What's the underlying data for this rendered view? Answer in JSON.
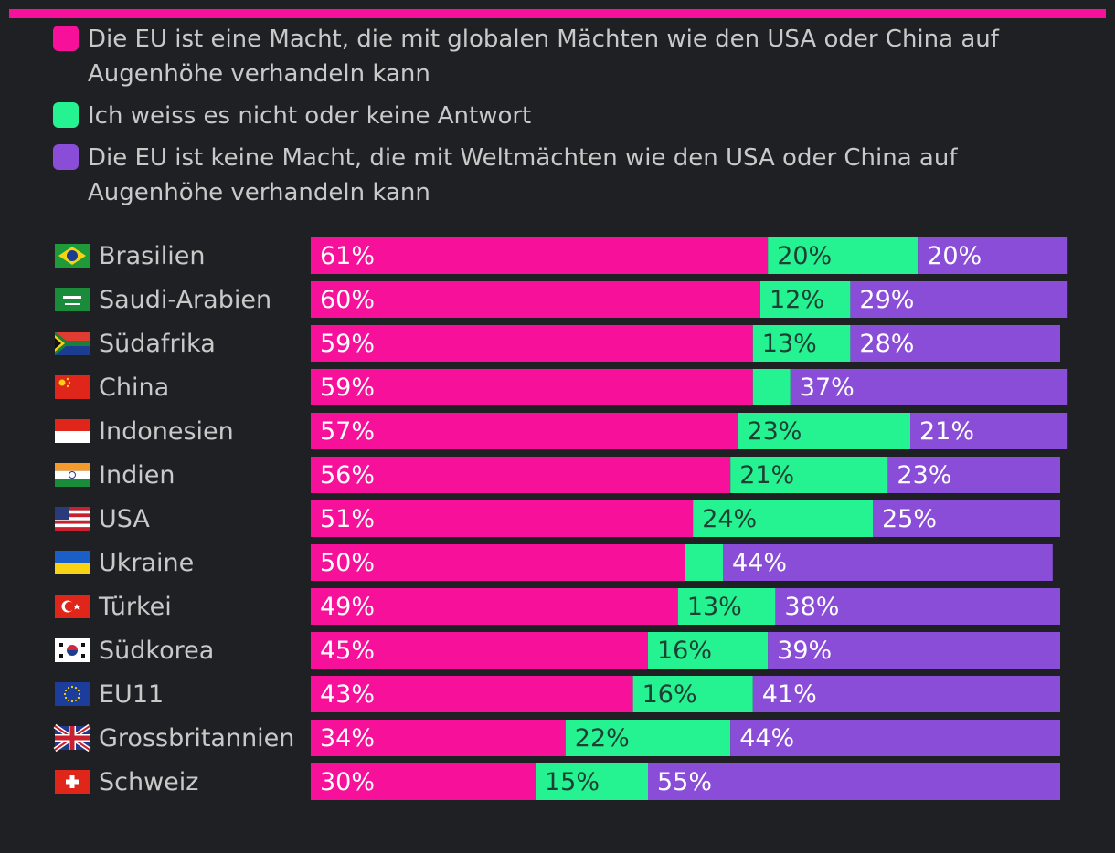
{
  "colors": {
    "accent": "#f7119a",
    "pink": "#f7119a",
    "green": "#25f391",
    "purple": "#8a4dd8",
    "background": "#1f2023",
    "text": "#c9c9c9"
  },
  "legend": [
    {
      "label": "Die EU ist eine Macht, die mit globalen Mächten wie den USA oder China auf Augenhöhe verhandeln kann",
      "color": "#f7119a"
    },
    {
      "label": "Ich weiss es nicht oder keine Antwort",
      "color": "#25f391"
    },
    {
      "label": "Die EU ist keine Macht, die mit Weltmächten wie den USA oder China auf Augenhöhe verhandeln kann",
      "color": "#8a4dd8"
    }
  ],
  "chart_data": {
    "type": "bar",
    "orientation": "horizontal",
    "stacked": true,
    "categories": [
      "Brasilien",
      "Saudi-Arabien",
      "Südafrika",
      "China",
      "Indonesien",
      "Indien",
      "USA",
      "Ukraine",
      "Türkei",
      "Südkorea",
      "EU11",
      "Grossbritannien",
      "Schweiz"
    ],
    "flags": [
      "flag-brazil-icon",
      "flag-saudi-arabia-icon",
      "flag-south-africa-icon",
      "flag-china-icon",
      "flag-indonesia-icon",
      "flag-india-icon",
      "flag-usa-icon",
      "flag-ukraine-icon",
      "flag-turkey-icon",
      "flag-south-korea-icon",
      "flag-eu-icon",
      "flag-uk-icon",
      "flag-switzerland-icon"
    ],
    "series": [
      {
        "name": "Die EU ist eine Macht, die mit globalen Mächten wie den USA oder China auf Augenhöhe verhandeln kann",
        "values": [
          61,
          60,
          59,
          59,
          57,
          56,
          51,
          50,
          49,
          45,
          43,
          34,
          30
        ]
      },
      {
        "name": "Ich weiss es nicht oder keine Antwort",
        "values": [
          20,
          12,
          13,
          5,
          23,
          21,
          24,
          5,
          13,
          16,
          16,
          22,
          15
        ]
      },
      {
        "name": "Die EU ist keine Macht, die mit Weltmächten wie den USA oder China auf Augenhöhe verhandeln kann",
        "values": [
          20,
          29,
          28,
          37,
          21,
          23,
          25,
          44,
          38,
          39,
          41,
          44,
          55
        ]
      }
    ],
    "labels": [
      [
        "61%",
        "20%",
        "20%"
      ],
      [
        "60%",
        "12%",
        "29%"
      ],
      [
        "59%",
        "13%",
        "28%"
      ],
      [
        "59%",
        "",
        "37%"
      ],
      [
        "57%",
        "23%",
        "21%"
      ],
      [
        "56%",
        "21%",
        "23%"
      ],
      [
        "51%",
        "24%",
        "25%"
      ],
      [
        "50%",
        "",
        "44%"
      ],
      [
        "49%",
        "13%",
        "38%"
      ],
      [
        "45%",
        "16%",
        "39%"
      ],
      [
        "43%",
        "16%",
        "41%"
      ],
      [
        "34%",
        "22%",
        "44%"
      ],
      [
        "30%",
        "15%",
        "55%"
      ]
    ],
    "xlim": [
      0,
      100
    ],
    "unit": "%"
  }
}
